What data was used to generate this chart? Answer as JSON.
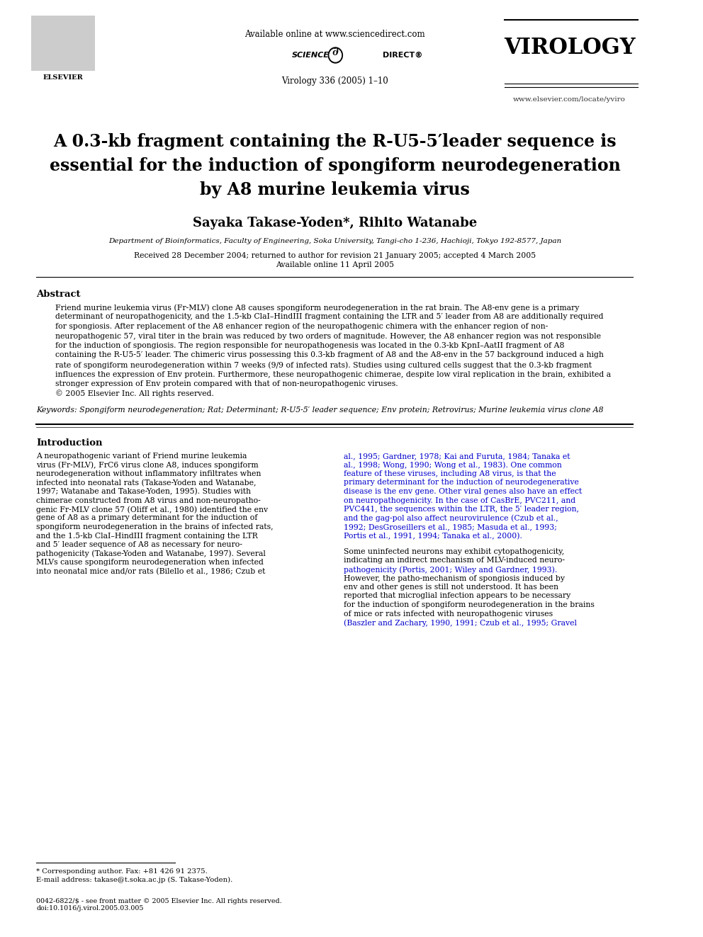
{
  "bg_color": "#ffffff",
  "header": {
    "available_online": "Available online at www.sciencedirect.com",
    "journal_name": "VIROLOGY",
    "journal_info": "Virology 336 (2005) 1–10",
    "website": "www.elsevier.com/locate/yviro"
  },
  "title": "A 0.3-kb fragment containing the R-U5-5′leader sequence is\nessential for the induction of spongiform neurodegeneration\nby A8 murine leukemia virus",
  "authors": "Sayaka Takase-Yoden*, Rihito Watanabe",
  "affiliation": "Department of Bioinformatics, Faculty of Engineering, Soka University, Tangi-cho 1-236, Hachioji, Tokyo 192-8577, Japan",
  "dates": "Received 28 December 2004; returned to author for revision 21 January 2005; accepted 4 March 2005\nAvailable online 11 April 2005",
  "abstract_title": "Abstract",
  "abstract_text": "Friend murine leukemia virus (Fr-MLV) clone A8 causes spongiform neurodegeneration in the rat brain. The A8-env gene is a primary determinant of neuropathogenicity, and the 1.5-kb ClaI–HindIII fragment containing the LTR and 5′ leader from A8 are additionally required for spongiosis. After replacement of the A8 enhancer region of the neuropathogenic chimera with the enhancer region of non-neuropathogenic 57, viral titer in the brain was reduced by two orders of magnitude. However, the A8 enhancer region was not responsible for the induction of spongiosis. The region responsible for neuropathogenesis was located in the 0.3-kb KpnI–AatII fragment of A8 containing the R-U5-5′ leader. The chimeric virus possessing this 0.3-kb fragment of A8 and the A8-env in the 57 background induced a high rate of spongiform neurodegeneration within 7 weeks (9/9 of infected rats). Studies using cultured cells suggest that the 0.3-kb fragment influences the expression of Env protein. Furthermore, these neuropathogenic chimerae, despite low viral replication in the brain, exhibited a stronger expression of Env protein compared with that of non-neuropathogenic viruses.\n© 2005 Elsevier Inc. All rights reserved.",
  "keywords": "Keywords: Spongiform neurodegeneration; Rat; Determinant; R-U5-5′ leader sequence; Env protein; Retrovirus; Murine leukemia virus clone A8",
  "intro_title": "Introduction",
  "intro_left": "A neuropathogenic variant of Friend murine leukemia virus (Fr-MLV), FrC6 virus clone A8, induces spongiform neurodegeneration without inflammatory infiltrates when infected into neonatal rats (Takase-Yoden and Watanabe, 1997; Watanabe and Takase-Yoden, 1995). Studies with chimerae constructed from A8 virus and non-neuropathogenic Fr-MLV clone 57 (Oliff et al., 1980) identified the env gene of A8 as a primary determinant for the induction of spongiform neurodegeneration in the brains of infected rats, and the 1.5-kb ClaI–HindIII fragment containing the LTR and 5′ leader sequence of A8 as necessary for neuropathogenicity (Takase-Yoden and Watanabe, 1997). Several MLVs cause spongiform neurodegeneration when infected into neonatal mice and/or rats (Bilello et al., 1986; Czub et",
  "intro_right": "al., 1995; Gardner, 1978; Kai and Furuta, 1984; Tanaka et al., 1998; Wong, 1990; Wong et al., 1983). One common feature of these viruses, including A8 virus, is that the primary determinant for the induction of neurodegenerative disease is the env gene. Other viral genes also have an effect on neuropathogenicity. In the case of CasBrE, PVC211, and PVC441, the sequences within the LTR, the 5′ leader region, and the gag-pol also affect neurovirulence (Czub et al., 1992; DesGroseillers et al., 1985; Masuda et al., 1993; Portis et al., 1991, 1994; Tanaka et al., 2000).\n\nSome uninfected neurons may exhibit cytopathogenicity, indicating an indirect mechanism of MLV-induced neuropathogenicity (Portis, 2001; Wiley and Gardner, 1993). However, the patho-mechanism of spongiosis induced by env and other genes is still not understood. It has been reported that microglial infection appears to be necessary for the induction of spongiform neurodegeneration in the brains of mice or rats infected with neuropathogenic viruses (Baszler and Zachary, 1990, 1991; Czub et al., 1995; Gravel",
  "footnote_star": "* Corresponding author. Fax: +81 426 91 2375.",
  "footnote_email": "E-mail address: takase@t.soka.ac.jp (S. Takase-Yoden).",
  "bottom_left": "0042-6822/$ - see front matter © 2005 Elsevier Inc. All rights reserved.\ndoi:10.1016/j.virol.2005.03.005",
  "link_color": "#0000cc",
  "text_color": "#000000"
}
